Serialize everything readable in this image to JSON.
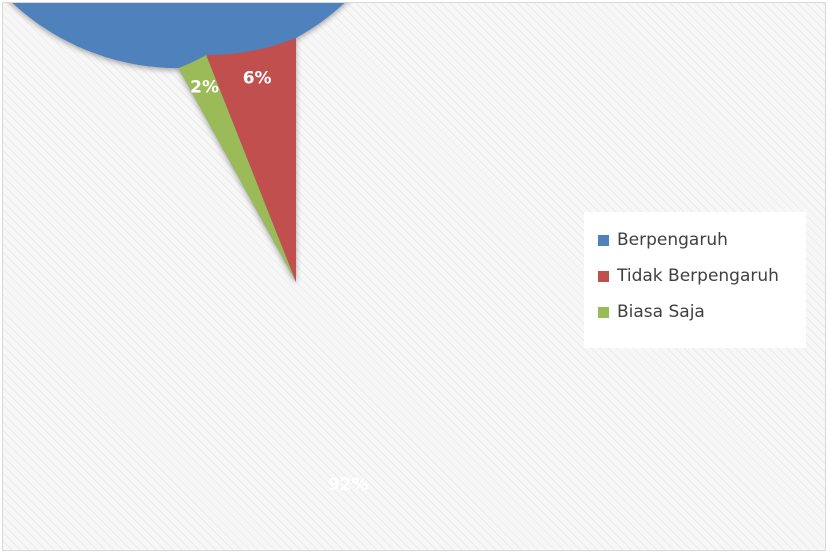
{
  "chart_data": {
    "type": "pie",
    "title": "",
    "categories": [
      "Berpengaruh",
      "Tidak Berpengaruh",
      "Biasa Saja"
    ],
    "values": [
      92,
      6,
      2
    ],
    "data_labels": [
      "92%",
      "6%",
      "2%"
    ],
    "colors": [
      "#4f81bd",
      "#c0504d",
      "#9bbb59"
    ],
    "legend_placement": "right",
    "start_angle": "top, clockwise"
  }
}
